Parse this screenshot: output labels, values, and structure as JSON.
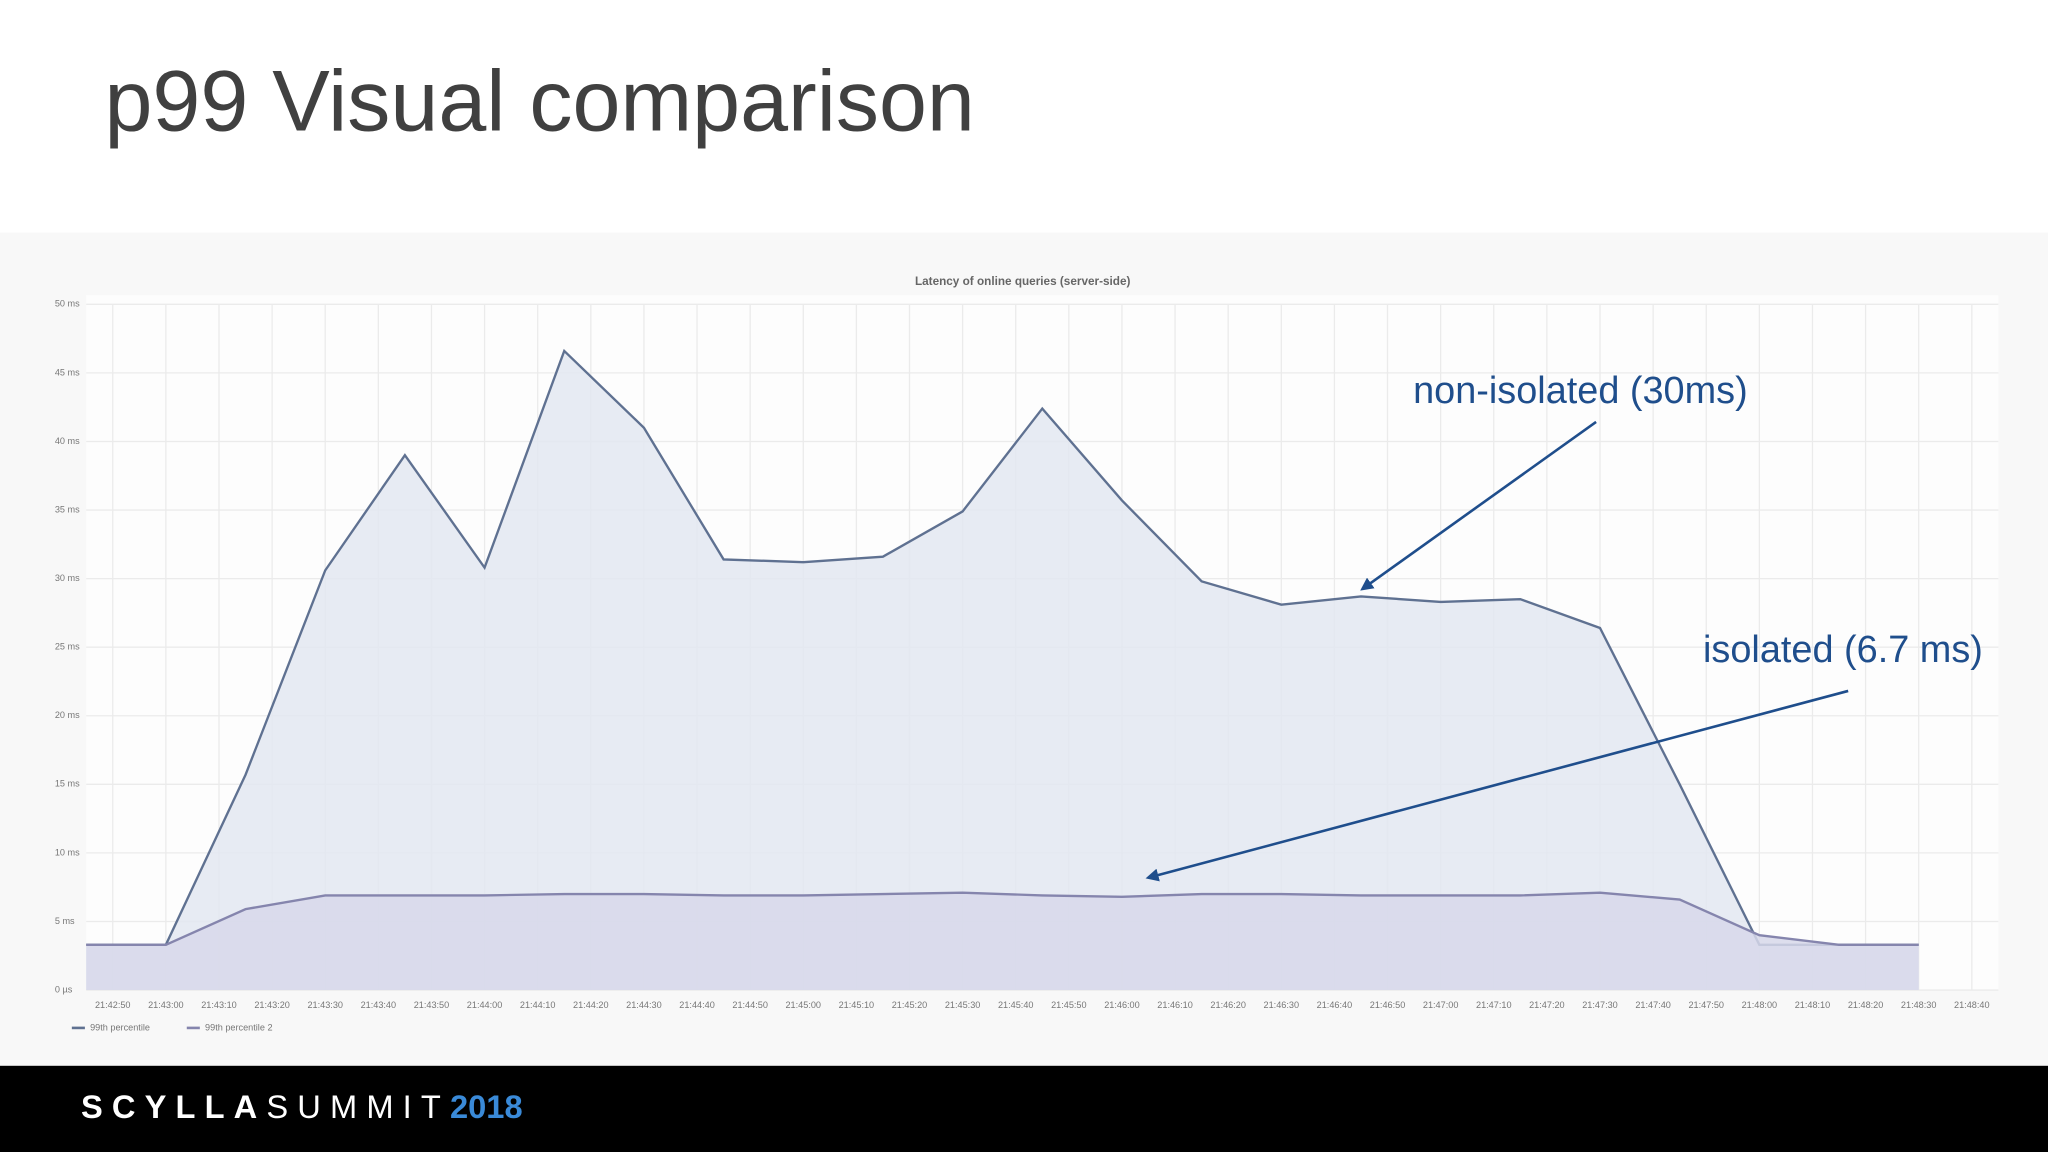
{
  "slide_title": "p99 Visual comparison",
  "footer": {
    "brand": "SCYLLA",
    "event": "SUMMIT",
    "year": "2018"
  },
  "chart_data": {
    "type": "area",
    "title": "Latency of online queries (server-side)",
    "x": [
      "21:42:45",
      "21:43:00",
      "21:43:15",
      "21:43:30",
      "21:43:45",
      "21:44:00",
      "21:44:15",
      "21:44:30",
      "21:44:45",
      "21:45:00",
      "21:45:15",
      "21:45:30",
      "21:45:45",
      "21:46:00",
      "21:46:15",
      "21:46:30",
      "21:46:45",
      "21:47:00",
      "21:47:15",
      "21:47:30",
      "21:47:45",
      "21:48:00",
      "21:48:15",
      "21:48:30"
    ],
    "series": [
      {
        "name": "99th percentile",
        "color": "#5f7191",
        "fill": "#e3e7f1",
        "values": [
          3.3,
          3.3,
          15.7,
          30.6,
          39.0,
          30.8,
          46.6,
          41.0,
          31.4,
          31.2,
          31.6,
          34.9,
          42.4,
          35.7,
          29.8,
          28.1,
          28.7,
          28.3,
          28.5,
          26.4,
          15.0,
          3.3,
          3.3,
          3.3
        ]
      },
      {
        "name": "99th percentile 2",
        "color": "#8585ad",
        "fill": "#d7d8ea",
        "values": [
          3.3,
          3.3,
          5.9,
          6.9,
          6.9,
          6.9,
          7.0,
          7.0,
          6.9,
          6.9,
          7.0,
          7.1,
          6.9,
          6.8,
          7.0,
          7.0,
          6.9,
          6.9,
          6.9,
          7.1,
          6.6,
          4.0,
          3.3,
          3.3
        ]
      }
    ],
    "xlim": [
      "21:42:45",
      "21:48:45"
    ],
    "xticks": [
      "21:42:50",
      "21:43:00",
      "21:43:10",
      "21:43:20",
      "21:43:30",
      "21:43:40",
      "21:43:50",
      "21:44:00",
      "21:44:10",
      "21:44:20",
      "21:44:30",
      "21:44:40",
      "21:44:50",
      "21:45:00",
      "21:45:10",
      "21:45:20",
      "21:45:30",
      "21:45:40",
      "21:45:50",
      "21:46:00",
      "21:46:10",
      "21:46:20",
      "21:46:30",
      "21:46:40",
      "21:46:50",
      "21:47:00",
      "21:47:10",
      "21:47:20",
      "21:47:30",
      "21:47:40",
      "21:47:50",
      "21:48:00",
      "21:48:10",
      "21:48:20",
      "21:48:30",
      "21:48:40"
    ],
    "ylim": [
      0,
      50
    ],
    "yticks": [
      {
        "value": 0,
        "label": "0 µs"
      },
      {
        "value": 5,
        "label": "5 ms"
      },
      {
        "value": 10,
        "label": "10 ms"
      },
      {
        "value": 15,
        "label": "15 ms"
      },
      {
        "value": 20,
        "label": "20 ms"
      },
      {
        "value": 25,
        "label": "25 ms"
      },
      {
        "value": 30,
        "label": "30 ms"
      },
      {
        "value": 35,
        "label": "35 ms"
      },
      {
        "value": 40,
        "label": "40 ms"
      },
      {
        "value": 45,
        "label": "45 ms"
      },
      {
        "value": 50,
        "label": "50 ms"
      }
    ],
    "grid": true,
    "legend": "bottom-left",
    "annotations": [
      {
        "text": "non-isolated (30ms)"
      },
      {
        "text": "isolated (6.7 ms)"
      }
    ]
  }
}
